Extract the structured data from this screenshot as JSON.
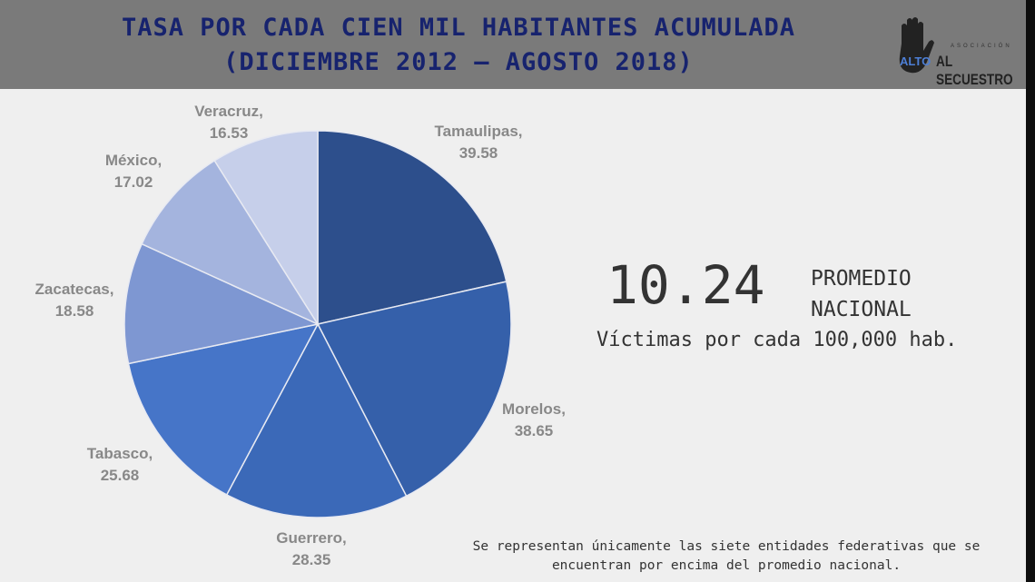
{
  "header": {
    "title_line1": "TASA POR CADA CIEN MIL HABITANTES ACUMULADA",
    "title_line2": "(DICIEMBRE 2012 – AGOSTO 2018)"
  },
  "logo": {
    "small": "ASOCIACIÓN",
    "alto": "ALTO",
    "name": "AL SECUESTRO",
    "icon": "raised-hand-icon"
  },
  "summary": {
    "value": "10.24",
    "label_line1": "PROMEDIO",
    "label_line2": "NACIONAL",
    "units": "Víctimas por cada 100,000 hab."
  },
  "note": "Se representan únicamente las siete entidades federativas que se encuentran por encima del promedio nacional.",
  "chart_data": {
    "type": "pie",
    "title": "TASA POR CADA CIEN MIL HABITANTES ACUMULADA (DICIEMBRE 2012 – AGOSTO 2018)",
    "start": "12 o'clock, clockwise",
    "categories": [
      "Tamaulipas",
      "Morelos",
      "Guerrero",
      "Tabasco",
      "Zacatecas",
      "México",
      "Veracruz"
    ],
    "values": [
      39.58,
      38.65,
      28.35,
      25.68,
      18.58,
      17.02,
      16.53
    ],
    "labels": [
      "39.58",
      "38.65",
      "28.35",
      "25.68",
      "18.58",
      "17.02",
      "16.53"
    ],
    "colors": [
      "#2d4f8c",
      "#3560aa",
      "#3b69b8",
      "#4675c8",
      "#7e97d2",
      "#a4b4de",
      "#c6cfea"
    ]
  }
}
